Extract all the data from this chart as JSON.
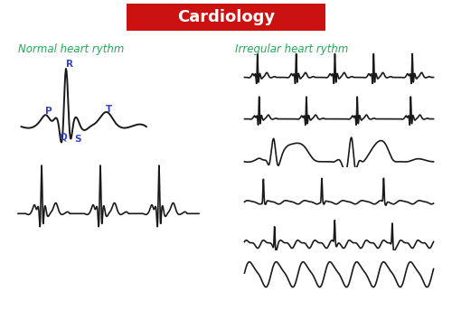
{
  "title": "Cardiology",
  "title_bg": "#cc1111",
  "title_color": "#ffffff",
  "left_subtitle": "Normal heart rythm",
  "right_subtitle": "Irregular heart rythm",
  "subtitle_color": "#22aa55",
  "label_color": "#3344bb",
  "bg_color": "#ffffff",
  "line_color": "#1a1a1a",
  "line_width": 1.2,
  "figsize": [
    5.0,
    3.54
  ],
  "dpi": 100
}
